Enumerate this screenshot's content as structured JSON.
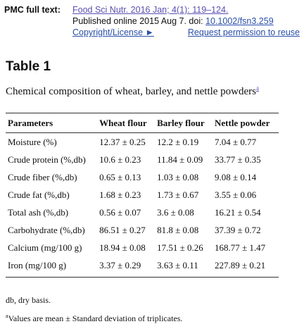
{
  "pmc": {
    "label": "PMC full text:",
    "citation_link": "Food Sci Nutr. 2016 Jan; 4(1): 119–124.",
    "published": "Published online 2015 Aug 7. doi: ",
    "doi_link": "10.1002/fsn3.259",
    "copyright_link": "Copyright/License ►",
    "permission_link": "Request permission to reuse"
  },
  "table": {
    "title": "Table 1",
    "caption": "Chemical composition of wheat, barley, and nettle powders",
    "caption_sup": "a",
    "headers": [
      "Parameters",
      "Wheat flour",
      "Barley flour",
      "Nettle powder"
    ],
    "rows": [
      [
        "Moisture (%)",
        "12.37 ± 0.25",
        "12.2 ± 0.19",
        "7.04 ± 0.77"
      ],
      [
        "Crude protein (%,db)",
        "10.6 ± 0.23",
        "11.84 ± 0.09",
        "33.77 ± 0.35"
      ],
      [
        "Crude fiber (%,db)",
        "0.65 ± 0.13",
        "1.03 ± 0.08",
        "9.08 ± 0.14"
      ],
      [
        "Crude fat (%,db)",
        "1.68 ± 0.23",
        "1.73 ± 0.67",
        "3.55 ± 0.06"
      ],
      [
        "Total ash (%,db)",
        "0.56 ± 0.07",
        "3.6 ± 0.08",
        "16.21 ± 0.54"
      ],
      [
        "Carbohydrate (%,db)",
        "86.51 ± 0.27",
        "81.8 ± 0.08",
        "37.39 ± 0.72"
      ],
      [
        "Calcium (mg/100 g)",
        "18.94 ± 0.08",
        "17.51 ± 0.26",
        "168.77 ± 1.47"
      ],
      [
        "Iron (mg/100 g)",
        "3.37 ± 0.29",
        "3.63 ± 0.11",
        "227.89 ± 0.21"
      ]
    ]
  },
  "footnotes": {
    "db": "db, dry basis.",
    "a_sup": "a",
    "a_text": "Values are mean ± Standard deviation of triplicates."
  }
}
